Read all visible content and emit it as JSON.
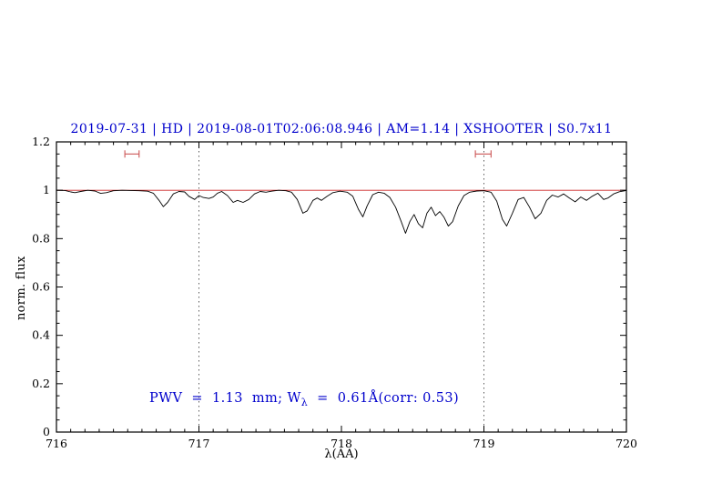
{
  "title": "2019-07-31 | HD | 2019-08-01T02:06:08.946 | AM=1.14 | XSHOOTER | S0.7x11",
  "annotation": {
    "part1": "PWV  =  1.13  mm; W",
    "sub": "λ",
    "part2": "  =  0.61Å(corr: 0.53)"
  },
  "colors": {
    "title_blue": "#0000cc",
    "annotation_blue": "#0000cc",
    "spectrum_black": "#000000",
    "continuum_red": "#cc2222",
    "marker_red": "#cc5555",
    "vline_gray": "#333333"
  },
  "chart_data": {
    "type": "line",
    "title": "2019-07-31 | HD | 2019-08-01T02:06:08.946 | AM=1.14 | XSHOOTER | S0.7x11",
    "xlabel": "λ(AA)",
    "ylabel": "norm. flux",
    "xlim": [
      716,
      720
    ],
    "ylim": [
      0,
      1.2
    ],
    "grid": "off",
    "legend": "none",
    "x_ticks": {
      "major": [
        716,
        717,
        718,
        719,
        720
      ],
      "labels": [
        "716",
        "717",
        "718",
        "719",
        "720"
      ],
      "minor_step": 0.1
    },
    "y_ticks": {
      "major": [
        0,
        0.2,
        0.4,
        0.6,
        0.8,
        1.0,
        1.2
      ],
      "labels": [
        "0",
        "0.2",
        "0.4",
        "0.6",
        "0.8",
        "1",
        "1.2"
      ],
      "minor_step": 0.05
    },
    "vlines": {
      "x": [
        717,
        719
      ],
      "style": "dotted"
    },
    "continuum": {
      "y": 1.0
    },
    "range_markers": [
      {
        "x1": 716.48,
        "x2": 716.58,
        "y": 1.15
      },
      {
        "x1": 718.94,
        "x2": 719.05,
        "y": 1.15
      }
    ],
    "series": [
      {
        "name": "observed-spectrum",
        "points": [
          [
            716.0,
            1.0
          ],
          [
            716.06,
            0.999
          ],
          [
            716.1,
            0.993
          ],
          [
            716.13,
            0.99
          ],
          [
            716.17,
            0.995
          ],
          [
            716.22,
            1.0
          ],
          [
            716.27,
            0.997
          ],
          [
            716.31,
            0.987
          ],
          [
            716.35,
            0.99
          ],
          [
            716.4,
            0.998
          ],
          [
            716.46,
            1.0
          ],
          [
            716.52,
            0.999
          ],
          [
            716.58,
            0.998
          ],
          [
            716.64,
            0.996
          ],
          [
            716.68,
            0.988
          ],
          [
            716.72,
            0.958
          ],
          [
            716.75,
            0.932
          ],
          [
            716.78,
            0.95
          ],
          [
            716.82,
            0.985
          ],
          [
            716.86,
            0.995
          ],
          [
            716.9,
            0.993
          ],
          [
            716.93,
            0.975
          ],
          [
            716.97,
            0.962
          ],
          [
            717.0,
            0.978
          ],
          [
            717.03,
            0.97
          ],
          [
            717.07,
            0.966
          ],
          [
            717.1,
            0.972
          ],
          [
            717.13,
            0.988
          ],
          [
            717.16,
            0.995
          ],
          [
            717.2,
            0.978
          ],
          [
            717.24,
            0.95
          ],
          [
            717.27,
            0.958
          ],
          [
            717.31,
            0.95
          ],
          [
            717.35,
            0.962
          ],
          [
            717.39,
            0.985
          ],
          [
            717.43,
            0.995
          ],
          [
            717.47,
            0.992
          ],
          [
            717.51,
            0.996
          ],
          [
            717.56,
            1.0
          ],
          [
            717.61,
            0.998
          ],
          [
            717.65,
            0.992
          ],
          [
            717.69,
            0.962
          ],
          [
            717.73,
            0.905
          ],
          [
            717.76,
            0.915
          ],
          [
            717.8,
            0.958
          ],
          [
            717.83,
            0.968
          ],
          [
            717.86,
            0.958
          ],
          [
            717.9,
            0.975
          ],
          [
            717.94,
            0.99
          ],
          [
            717.99,
            0.996
          ],
          [
            718.04,
            0.992
          ],
          [
            718.08,
            0.975
          ],
          [
            718.12,
            0.92
          ],
          [
            718.15,
            0.89
          ],
          [
            718.18,
            0.935
          ],
          [
            718.22,
            0.982
          ],
          [
            718.26,
            0.992
          ],
          [
            718.3,
            0.988
          ],
          [
            718.34,
            0.97
          ],
          [
            718.38,
            0.93
          ],
          [
            718.42,
            0.87
          ],
          [
            718.45,
            0.822
          ],
          [
            718.48,
            0.87
          ],
          [
            718.51,
            0.9
          ],
          [
            718.54,
            0.862
          ],
          [
            718.57,
            0.845
          ],
          [
            718.6,
            0.905
          ],
          [
            718.63,
            0.93
          ],
          [
            718.66,
            0.895
          ],
          [
            718.69,
            0.912
          ],
          [
            718.72,
            0.888
          ],
          [
            718.75,
            0.852
          ],
          [
            718.78,
            0.87
          ],
          [
            718.82,
            0.935
          ],
          [
            718.86,
            0.978
          ],
          [
            718.9,
            0.992
          ],
          [
            718.95,
            0.997
          ],
          [
            719.0,
            0.998
          ],
          [
            719.05,
            0.992
          ],
          [
            719.09,
            0.955
          ],
          [
            719.13,
            0.88
          ],
          [
            719.16,
            0.852
          ],
          [
            719.2,
            0.905
          ],
          [
            719.24,
            0.962
          ],
          [
            719.28,
            0.97
          ],
          [
            719.32,
            0.93
          ],
          [
            719.36,
            0.882
          ],
          [
            719.4,
            0.905
          ],
          [
            719.44,
            0.958
          ],
          [
            719.48,
            0.98
          ],
          [
            719.52,
            0.972
          ],
          [
            719.56,
            0.985
          ],
          [
            719.6,
            0.968
          ],
          [
            719.64,
            0.952
          ],
          [
            719.68,
            0.972
          ],
          [
            719.72,
            0.958
          ],
          [
            719.76,
            0.975
          ],
          [
            719.8,
            0.988
          ],
          [
            719.84,
            0.962
          ],
          [
            719.87,
            0.968
          ],
          [
            719.91,
            0.985
          ],
          [
            719.95,
            0.994
          ],
          [
            720.0,
            0.999
          ]
        ]
      }
    ]
  }
}
